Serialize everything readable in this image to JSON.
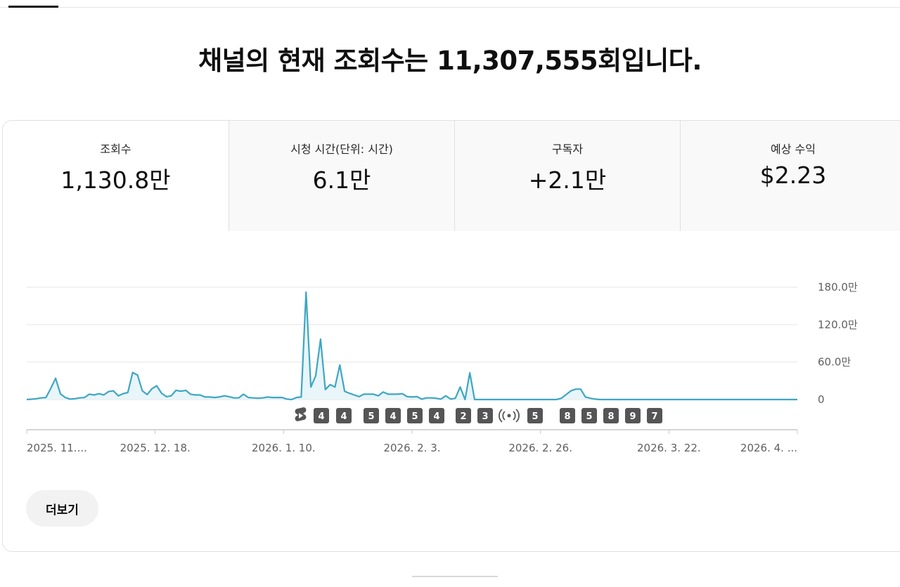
{
  "headline": "채널의 현재 조회수는 11,307,555회입니다.",
  "metrics": [
    {
      "label": "조회수",
      "value": "1,130.8만"
    },
    {
      "label": "시청 시간(단위: 시간)",
      "value": "6.1만"
    },
    {
      "label": "구독자",
      "value": "+2.1만"
    },
    {
      "label": "예상 수익",
      "value": "$2.23"
    }
  ],
  "more_label": "더보기",
  "colors": {
    "line": "#3ea6c3",
    "fill": "#e8f5f9",
    "badge": "#555555",
    "grid": "#e6e6e6",
    "axis": "#cccccc"
  },
  "chart_data": {
    "type": "area",
    "ylim": [
      0,
      180
    ],
    "yunit": "만",
    "yticks": [
      {
        "value": 0,
        "label": "0"
      },
      {
        "value": 60,
        "label": "60.0만"
      },
      {
        "value": 120,
        "label": "120.0만"
      },
      {
        "value": 180,
        "label": "180.0만"
      }
    ],
    "xticks": [
      "2025. 11....",
      "2025. 12. 18.",
      "2026. 1. 10.",
      "2026. 2. 3.",
      "2026. 2. 26.",
      "2026. 3. 22.",
      "2026. 4. ..."
    ],
    "values": [
      0,
      0.6,
      1.3,
      2.6,
      3.3,
      18,
      34,
      9,
      3.3,
      0.7,
      1.3,
      2.6,
      3.3,
      8.6,
      7.3,
      9.3,
      7.3,
      12.7,
      14,
      6,
      9.3,
      11.3,
      43.3,
      39.3,
      14,
      8,
      17.3,
      22,
      10,
      4.6,
      6,
      14.7,
      13.3,
      14.7,
      8.6,
      7.3,
      7.3,
      4,
      4,
      3.3,
      4,
      6,
      4.6,
      2.6,
      2.6,
      8.6,
      3.3,
      2.6,
      2,
      2.6,
      4,
      3.3,
      3.3,
      3.3,
      0.7,
      0,
      3.3,
      4,
      172,
      20,
      38,
      96.7,
      16,
      24,
      20,
      55.3,
      13.3,
      10,
      7.3,
      4.6,
      8.6,
      8.6,
      8.6,
      6,
      12,
      8.6,
      8.6,
      8.6,
      9.3,
      4.6,
      4,
      4.6,
      0.7,
      2.6,
      2.6,
      2,
      0.7,
      6,
      0.7,
      2,
      20,
      0,
      42.7,
      0,
      0,
      0,
      0,
      0,
      0,
      0,
      0,
      0,
      0,
      0,
      0,
      0,
      0,
      0,
      0,
      0,
      0,
      2,
      8,
      14,
      16.7,
      16.7,
      4,
      2,
      0.7,
      0,
      0,
      0,
      0,
      0,
      0,
      0,
      0,
      0,
      0,
      0,
      0,
      0,
      0,
      0,
      0,
      0,
      0,
      0,
      0,
      0,
      0,
      0,
      0,
      0,
      0,
      0,
      0,
      0,
      0,
      0,
      0,
      0,
      0,
      0,
      0,
      0,
      0,
      0,
      0,
      0,
      0
    ],
    "markers": [
      {
        "kind": "shorts",
        "label": ""
      },
      {
        "kind": "num",
        "label": "4"
      },
      {
        "kind": "num",
        "label": "4"
      },
      {
        "kind": "num",
        "label": "5"
      },
      {
        "kind": "num",
        "label": "4"
      },
      {
        "kind": "num",
        "label": "5"
      },
      {
        "kind": "num",
        "label": "4"
      },
      {
        "kind": "num",
        "label": "2"
      },
      {
        "kind": "num",
        "label": "3"
      },
      {
        "kind": "live",
        "label": ""
      },
      {
        "kind": "num",
        "label": "5"
      },
      {
        "kind": "num",
        "label": "8"
      },
      {
        "kind": "num",
        "label": "5"
      },
      {
        "kind": "num",
        "label": "8"
      },
      {
        "kind": "num",
        "label": "9"
      },
      {
        "kind": "num",
        "label": "7"
      }
    ]
  }
}
